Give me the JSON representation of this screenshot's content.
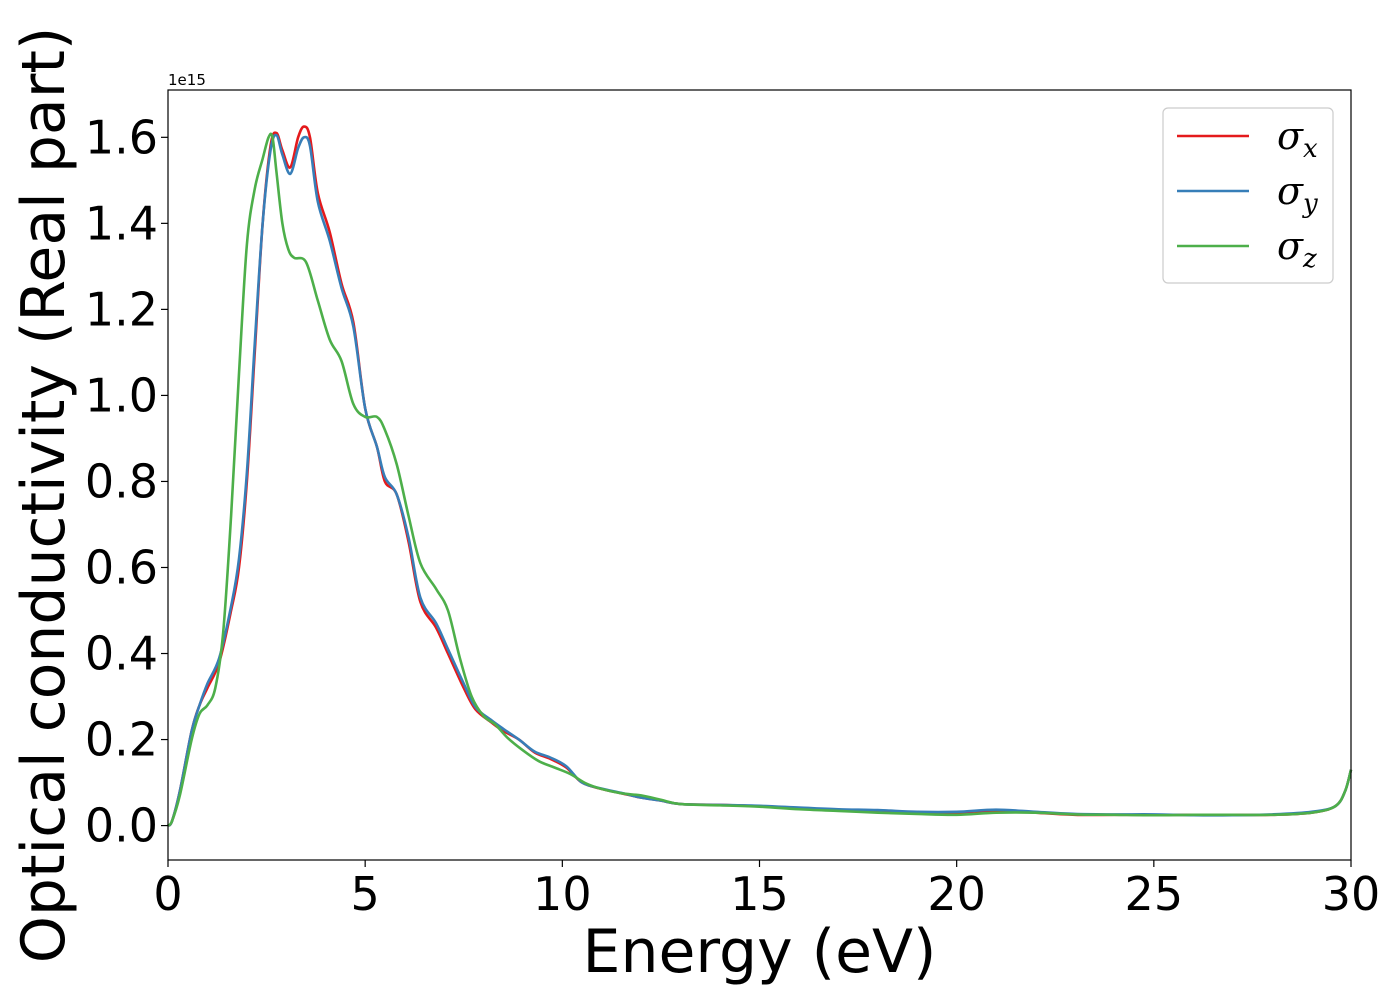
{
  "chart_data": {
    "type": "line",
    "xlabel": "Energy (eV)",
    "ylabel": "Optical conductivity (Real part)",
    "y_offset_label": "1e15",
    "xlim": [
      0,
      30
    ],
    "ylim": [
      -0.08,
      1.71
    ],
    "xticks": [
      0,
      5,
      10,
      15,
      20,
      25,
      30
    ],
    "xtick_labels": [
      "0",
      "5",
      "10",
      "15",
      "20",
      "25",
      "30"
    ],
    "yticks": [
      0.0,
      0.2,
      0.4,
      0.6,
      0.8,
      1.0,
      1.2,
      1.4,
      1.6
    ],
    "ytick_labels": [
      "0.0",
      "0.2",
      "0.4",
      "0.6",
      "0.8",
      "1.0",
      "1.2",
      "1.4",
      "1.6"
    ],
    "grid": false,
    "legend_position": "top-right",
    "series": [
      {
        "name": "σx",
        "legend_main": "σ",
        "legend_sub": "x",
        "color": "#e41a1c",
        "points": [
          [
            0,
            0.0
          ],
          [
            0.1,
            0.01
          ],
          [
            0.3,
            0.08
          ],
          [
            0.6,
            0.22
          ],
          [
            0.8,
            0.28
          ],
          [
            1.0,
            0.32
          ],
          [
            1.3,
            0.38
          ],
          [
            1.6,
            0.5
          ],
          [
            1.8,
            0.6
          ],
          [
            2.0,
            0.8
          ],
          [
            2.2,
            1.1
          ],
          [
            2.4,
            1.4
          ],
          [
            2.6,
            1.58
          ],
          [
            2.75,
            1.61
          ],
          [
            2.9,
            1.57
          ],
          [
            3.1,
            1.53
          ],
          [
            3.3,
            1.6
          ],
          [
            3.45,
            1.625
          ],
          [
            3.6,
            1.6
          ],
          [
            3.8,
            1.47
          ],
          [
            4.1,
            1.38
          ],
          [
            4.4,
            1.26
          ],
          [
            4.7,
            1.17
          ],
          [
            5.0,
            0.97
          ],
          [
            5.3,
            0.88
          ],
          [
            5.5,
            0.8
          ],
          [
            5.8,
            0.77
          ],
          [
            6.1,
            0.66
          ],
          [
            6.4,
            0.52
          ],
          [
            6.8,
            0.46
          ],
          [
            7.1,
            0.4
          ],
          [
            7.5,
            0.32
          ],
          [
            7.8,
            0.27
          ],
          [
            8.2,
            0.24
          ],
          [
            8.5,
            0.22
          ],
          [
            8.9,
            0.2
          ],
          [
            9.3,
            0.17
          ],
          [
            9.7,
            0.155
          ],
          [
            10.1,
            0.135
          ],
          [
            10.5,
            0.1
          ],
          [
            11.0,
            0.085
          ],
          [
            11.5,
            0.075
          ],
          [
            12.0,
            0.065
          ],
          [
            12.5,
            0.058
          ],
          [
            13.0,
            0.05
          ],
          [
            14.0,
            0.048
          ],
          [
            15.0,
            0.045
          ],
          [
            16.0,
            0.04
          ],
          [
            17.0,
            0.037
          ],
          [
            18.0,
            0.035
          ],
          [
            19.0,
            0.03
          ],
          [
            20.0,
            0.03
          ],
          [
            21.0,
            0.035
          ],
          [
            22.0,
            0.03
          ],
          [
            23.0,
            0.025
          ],
          [
            24.0,
            0.025
          ],
          [
            25.0,
            0.025
          ],
          [
            26.0,
            0.025
          ],
          [
            27.0,
            0.025
          ],
          [
            28.0,
            0.025
          ],
          [
            29.0,
            0.03
          ],
          [
            29.6,
            0.045
          ],
          [
            29.85,
            0.08
          ],
          [
            30.0,
            0.13
          ]
        ]
      },
      {
        "name": "σy",
        "legend_main": "σ",
        "legend_sub": "y",
        "color": "#377eb8",
        "points": [
          [
            0,
            0.0
          ],
          [
            0.1,
            0.01
          ],
          [
            0.3,
            0.08
          ],
          [
            0.6,
            0.22
          ],
          [
            0.8,
            0.28
          ],
          [
            1.0,
            0.33
          ],
          [
            1.3,
            0.39
          ],
          [
            1.6,
            0.51
          ],
          [
            1.8,
            0.62
          ],
          [
            2.0,
            0.82
          ],
          [
            2.2,
            1.12
          ],
          [
            2.4,
            1.4
          ],
          [
            2.6,
            1.57
          ],
          [
            2.75,
            1.605
          ],
          [
            2.9,
            1.56
          ],
          [
            3.1,
            1.515
          ],
          [
            3.3,
            1.575
          ],
          [
            3.45,
            1.6
          ],
          [
            3.6,
            1.58
          ],
          [
            3.8,
            1.45
          ],
          [
            4.1,
            1.36
          ],
          [
            4.4,
            1.25
          ],
          [
            4.7,
            1.16
          ],
          [
            5.0,
            0.97
          ],
          [
            5.3,
            0.88
          ],
          [
            5.5,
            0.81
          ],
          [
            5.8,
            0.77
          ],
          [
            6.1,
            0.67
          ],
          [
            6.4,
            0.53
          ],
          [
            6.8,
            0.47
          ],
          [
            7.1,
            0.41
          ],
          [
            7.5,
            0.33
          ],
          [
            7.8,
            0.275
          ],
          [
            8.2,
            0.245
          ],
          [
            8.5,
            0.225
          ],
          [
            8.9,
            0.2
          ],
          [
            9.3,
            0.172
          ],
          [
            9.7,
            0.158
          ],
          [
            10.1,
            0.138
          ],
          [
            10.5,
            0.1
          ],
          [
            11.0,
            0.086
          ],
          [
            11.5,
            0.076
          ],
          [
            12.0,
            0.065
          ],
          [
            12.5,
            0.058
          ],
          [
            13.0,
            0.05
          ],
          [
            14.0,
            0.048
          ],
          [
            15.0,
            0.046
          ],
          [
            16.0,
            0.042
          ],
          [
            17.0,
            0.038
          ],
          [
            18.0,
            0.036
          ],
          [
            19.0,
            0.032
          ],
          [
            20.0,
            0.032
          ],
          [
            21.0,
            0.037
          ],
          [
            22.0,
            0.032
          ],
          [
            23.0,
            0.027
          ],
          [
            24.0,
            0.026
          ],
          [
            25.0,
            0.026
          ],
          [
            26.0,
            0.024
          ],
          [
            27.0,
            0.024
          ],
          [
            28.0,
            0.026
          ],
          [
            29.0,
            0.032
          ],
          [
            29.6,
            0.045
          ],
          [
            29.85,
            0.08
          ],
          [
            30.0,
            0.13
          ]
        ]
      },
      {
        "name": "σz",
        "legend_main": "σ",
        "legend_sub": "z",
        "color": "#4daf4a",
        "points": [
          [
            0,
            0.0
          ],
          [
            0.1,
            0.01
          ],
          [
            0.3,
            0.07
          ],
          [
            0.6,
            0.2
          ],
          [
            0.8,
            0.26
          ],
          [
            1.0,
            0.28
          ],
          [
            1.2,
            0.32
          ],
          [
            1.4,
            0.45
          ],
          [
            1.6,
            0.72
          ],
          [
            1.8,
            1.05
          ],
          [
            2.0,
            1.35
          ],
          [
            2.2,
            1.48
          ],
          [
            2.4,
            1.55
          ],
          [
            2.55,
            1.6
          ],
          [
            2.65,
            1.6
          ],
          [
            2.75,
            1.52
          ],
          [
            2.9,
            1.4
          ],
          [
            3.05,
            1.34
          ],
          [
            3.2,
            1.32
          ],
          [
            3.5,
            1.31
          ],
          [
            3.8,
            1.22
          ],
          [
            4.1,
            1.13
          ],
          [
            4.4,
            1.08
          ],
          [
            4.7,
            0.98
          ],
          [
            5.0,
            0.95
          ],
          [
            5.3,
            0.95
          ],
          [
            5.5,
            0.92
          ],
          [
            5.8,
            0.84
          ],
          [
            6.1,
            0.72
          ],
          [
            6.4,
            0.61
          ],
          [
            6.8,
            0.55
          ],
          [
            7.1,
            0.5
          ],
          [
            7.4,
            0.39
          ],
          [
            7.7,
            0.3
          ],
          [
            8.0,
            0.255
          ],
          [
            8.3,
            0.235
          ],
          [
            8.6,
            0.205
          ],
          [
            9.0,
            0.175
          ],
          [
            9.4,
            0.15
          ],
          [
            9.8,
            0.135
          ],
          [
            10.2,
            0.12
          ],
          [
            10.6,
            0.098
          ],
          [
            11.0,
            0.085
          ],
          [
            11.5,
            0.075
          ],
          [
            12.0,
            0.07
          ],
          [
            12.5,
            0.06
          ],
          [
            13.0,
            0.05
          ],
          [
            14.0,
            0.047
          ],
          [
            15.0,
            0.044
          ],
          [
            16.0,
            0.038
          ],
          [
            17.0,
            0.034
          ],
          [
            18.0,
            0.03
          ],
          [
            19.0,
            0.027
          ],
          [
            20.0,
            0.025
          ],
          [
            21.0,
            0.03
          ],
          [
            22.0,
            0.03
          ],
          [
            23.0,
            0.026
          ],
          [
            24.0,
            0.025
          ],
          [
            25.0,
            0.024
          ],
          [
            26.0,
            0.025
          ],
          [
            27.0,
            0.025
          ],
          [
            28.0,
            0.025
          ],
          [
            29.0,
            0.03
          ],
          [
            29.6,
            0.045
          ],
          [
            29.85,
            0.08
          ],
          [
            30.0,
            0.13
          ]
        ]
      }
    ]
  }
}
